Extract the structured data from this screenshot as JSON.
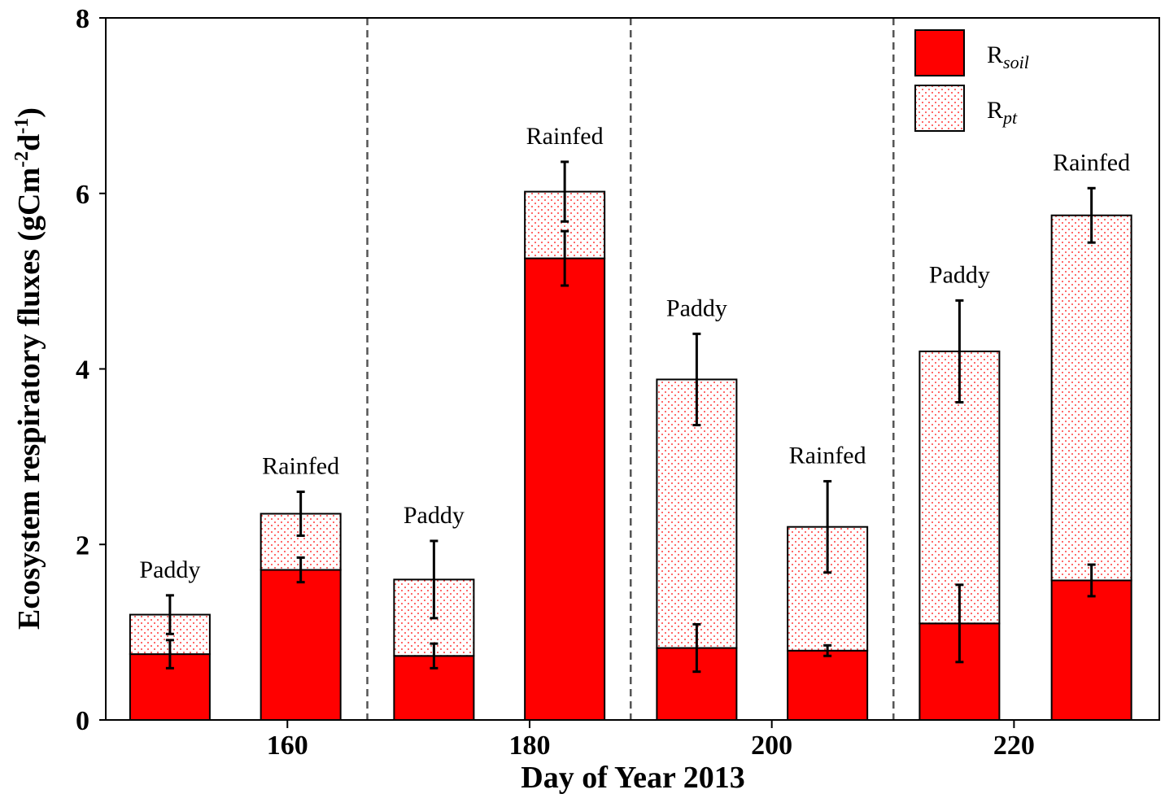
{
  "chart_data": {
    "type": "stacked-bar",
    "xlabel": "Day of Year 2013",
    "ylabel": [
      "Ecosystem respiratory fluxes (gCm",
      "-2",
      "d",
      "-1",
      ")"
    ],
    "x": [
      150.3,
      161.1,
      172.1,
      182.9,
      193.8,
      204.6,
      215.5,
      226.4
    ],
    "bar_labels": [
      "Paddy",
      "Rainfed",
      "Paddy",
      "Rainfed",
      "Paddy",
      "Rainfed",
      "Paddy",
      "Rainfed"
    ],
    "series": [
      {
        "name": "R",
        "subscript": "soil",
        "color": "#ff0000",
        "pattern": "solid",
        "values": [
          0.75,
          1.71,
          0.73,
          5.26,
          0.82,
          0.79,
          1.1,
          1.59
        ],
        "errors": [
          0.16,
          0.14,
          0.14,
          0.31,
          0.27,
          0.06,
          0.44,
          0.18
        ]
      },
      {
        "name": "R",
        "subscript": "pt",
        "color": "#ff0000",
        "pattern": "dotted",
        "values": [
          0.45,
          0.64,
          0.87,
          0.76,
          3.06,
          1.41,
          3.1,
          4.16
        ],
        "errors": [
          0.22,
          0.25,
          0.44,
          0.34,
          0.52,
          0.52,
          0.58,
          0.31
        ]
      }
    ],
    "xlim": [
      145,
      232
    ],
    "xticks": [
      160,
      180,
      200,
      220
    ],
    "ylim": [
      0,
      8
    ],
    "yticks": [
      0,
      2,
      4,
      6,
      8
    ],
    "legend": "top-right"
  }
}
